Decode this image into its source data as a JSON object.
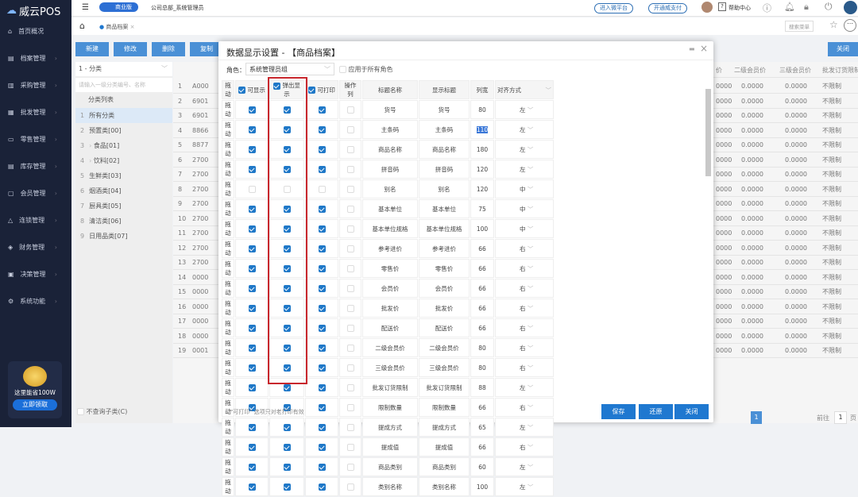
{
  "app": {
    "logo": "威云POS",
    "edition": "商业版",
    "company_user": "公司总部_系统管理员"
  },
  "topbar": {
    "enter_platform": "进入微平台",
    "open_pay": "开通威支付",
    "help": "帮助中心",
    "menu_search": "搜索菜单"
  },
  "sidebar": {
    "items": [
      "首页概况",
      "档案管理",
      "采购管理",
      "批发管理",
      "零售管理",
      "库存管理",
      "会员管理",
      "连锁管理",
      "财务管理",
      "决策管理",
      "系统功能"
    ],
    "promo_text": "这里能省100W",
    "promo_button": "立即领取"
  },
  "tabs": [
    {
      "label": "商品档案"
    }
  ],
  "toolbar": {
    "buttons": [
      "新建",
      "修改",
      "删除",
      "复制"
    ],
    "close": "关闭"
  },
  "left_panel": {
    "category_select": "1 - 分类",
    "search_placeholder": "请输入一级分类编号、名称",
    "list_header": "分类列表",
    "categories": [
      "所有分类",
      "预置类[00]",
      "食品[01]",
      "饮料[02]",
      "生鲜类[03]",
      "烟酒类[04]",
      "厨具类[05]",
      "清洁类[06]",
      "日用品类[07]"
    ],
    "no_sub": "不查询子类(C)"
  },
  "bg_grid": {
    "headers": [
      "价",
      "二级会员价",
      "三级会员价",
      "批发订货限制"
    ],
    "codes": [
      "A000",
      "6901",
      "6901",
      "8866",
      "8877",
      "2700",
      "2700",
      "2700",
      "2700",
      "2700",
      "2700",
      "2700",
      "2700",
      "0000",
      "0000",
      "0000",
      "0000",
      "0000",
      "0001"
    ],
    "partial": "0000",
    "price": "0.0000",
    "limit": "不限制",
    "page": "1",
    "goto": "前往",
    "goto_page": "1",
    "page_unit": "页"
  },
  "modal": {
    "title": "数据显示设置 - 【商品档案】",
    "role_label": "角色：",
    "role_value": "系统管理员组",
    "apply_all": "应用于所有角色",
    "headers": {
      "drag": "拖动",
      "visible": "可显示",
      "popup": "弹出显示",
      "printable": "可打印",
      "op_col": "操作列",
      "field": "标题名称",
      "display": "显示标题",
      "width": "列宽",
      "align": "对齐方式"
    },
    "drag_label": "拖动",
    "rows": [
      {
        "field": "货号",
        "display": "货号",
        "width": "80",
        "align": "左",
        "on": true
      },
      {
        "field": "主条码",
        "display": "主条码",
        "width": "110",
        "align": "左",
        "on": true
      },
      {
        "field": "商品名称",
        "display": "商品名称",
        "width": "180",
        "align": "左",
        "on": true
      },
      {
        "field": "拼音码",
        "display": "拼音码",
        "width": "120",
        "align": "左",
        "on": true
      },
      {
        "field": "别名",
        "display": "别名",
        "width": "120",
        "align": "中",
        "on": false
      },
      {
        "field": "基本单位",
        "display": "基本单位",
        "width": "75",
        "align": "中",
        "on": true
      },
      {
        "field": "基本单位规格",
        "display": "基本单位规格",
        "width": "100",
        "align": "中",
        "on": true
      },
      {
        "field": "参考进价",
        "display": "参考进价",
        "width": "66",
        "align": "右",
        "on": true
      },
      {
        "field": "零售价",
        "display": "零售价",
        "width": "66",
        "align": "右",
        "on": true
      },
      {
        "field": "会员价",
        "display": "会员价",
        "width": "66",
        "align": "右",
        "on": true
      },
      {
        "field": "批发价",
        "display": "批发价",
        "width": "66",
        "align": "右",
        "on": true
      },
      {
        "field": "配送价",
        "display": "配送价",
        "width": "66",
        "align": "右",
        "on": true
      },
      {
        "field": "二级会员价",
        "display": "二级会员价",
        "width": "80",
        "align": "右",
        "on": true
      },
      {
        "field": "三级会员价",
        "display": "三级会员价",
        "width": "80",
        "align": "右",
        "on": true
      },
      {
        "field": "批发订货限制",
        "display": "批发订货限制",
        "width": "88",
        "align": "左",
        "on": true
      },
      {
        "field": "限制数量",
        "display": "限制数量",
        "width": "66",
        "align": "右",
        "on": true
      },
      {
        "field": "提成方式",
        "display": "提成方式",
        "width": "65",
        "align": "左",
        "on": true
      },
      {
        "field": "提成值",
        "display": "提成值",
        "width": "66",
        "align": "右",
        "on": true
      },
      {
        "field": "商品类别",
        "display": "商品类别",
        "width": "60",
        "align": "左",
        "on": true
      },
      {
        "field": "类别名称",
        "display": "类别名称",
        "width": "100",
        "align": "左",
        "on": true
      }
    ],
    "note": "\"可打印\" 选项只对老打印有效",
    "save": "保存",
    "restore": "还原",
    "close": "关闭"
  },
  "colors": {
    "sidebar": "#1a2238",
    "accent": "#1f78d0",
    "highlight": "#c8272d"
  }
}
